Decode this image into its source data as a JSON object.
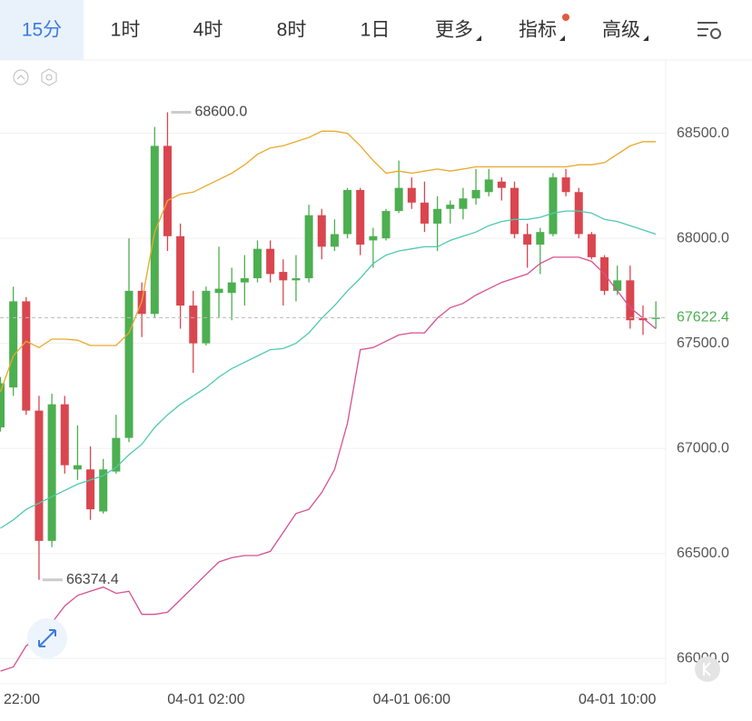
{
  "toolbar": {
    "tabs": [
      "15分",
      "1时",
      "4时",
      "8时",
      "1日",
      "更多",
      "指标",
      "高级"
    ],
    "active": 0
  },
  "chart_data": {
    "type": "candlestick",
    "categories": [
      "22:00",
      null,
      null,
      null,
      null,
      null,
      null,
      null,
      null,
      null,
      null,
      null,
      null,
      null,
      null,
      null,
      "04-01 02:00",
      null,
      null,
      null,
      null,
      null,
      null,
      null,
      null,
      null,
      null,
      null,
      null,
      null,
      null,
      null,
      "04-01 06:00",
      null,
      null,
      null,
      null,
      null,
      null,
      null,
      null,
      null,
      null,
      null,
      null,
      null,
      null,
      null,
      "04-01 10:00",
      null,
      null,
      null
    ],
    "open": [
      67100,
      67290,
      67700,
      67180,
      66560,
      67210,
      66900,
      66900,
      66700,
      66890,
      67050,
      67750,
      67640,
      68440,
      68010,
      67680,
      67500,
      67740,
      67740,
      67790,
      67810,
      67950,
      67840,
      67800,
      67810,
      68110,
      67960,
      68020,
      68230,
      67990,
      68000,
      68130,
      68240,
      68170,
      68070,
      68140,
      68140,
      68190,
      68220,
      68270,
      68240,
      68020,
      67970,
      68020,
      68290,
      68220,
      68020,
      67910,
      67750,
      67800,
      67620,
      67620
    ],
    "high": [
      67340,
      67770,
      67720,
      67250,
      67260,
      67250,
      67110,
      67010,
      66950,
      67160,
      68000,
      67790,
      68530,
      68600,
      68070,
      67750,
      67770,
      67960,
      67860,
      67920,
      67990,
      67990,
      67900,
      67920,
      68160,
      68140,
      68090,
      68240,
      68240,
      68050,
      68140,
      68370,
      68290,
      68270,
      68200,
      68180,
      68240,
      68330,
      68330,
      68290,
      68270,
      68070,
      68050,
      68310,
      68330,
      68240,
      68030,
      67920,
      67870,
      67870,
      67680,
      67700
    ],
    "low": [
      67080,
      67250,
      67160,
      66374.4,
      66530,
      66880,
      66850,
      66660,
      66690,
      66880,
      67030,
      67530,
      67620,
      67940,
      67570,
      67360,
      67490,
      67620,
      67610,
      67680,
      67790,
      67790,
      67680,
      67700,
      67790,
      67900,
      67940,
      68000,
      67920,
      67860,
      67990,
      68120,
      68140,
      68030,
      67940,
      68070,
      68090,
      68160,
      68200,
      68180,
      68000,
      67860,
      67830,
      68010,
      68200,
      68000,
      67900,
      67730,
      67730,
      67570,
      67540,
      67570
    ],
    "close": [
      67310,
      67700,
      67180,
      66560,
      67210,
      66920,
      66920,
      66710,
      66900,
      67050,
      67750,
      67640,
      68440,
      68010,
      67680,
      67500,
      67750,
      67760,
      67790,
      67810,
      67950,
      67830,
      67800,
      67810,
      68110,
      67960,
      68020,
      68230,
      67970,
      68010,
      68130,
      68240,
      68170,
      68070,
      68140,
      68160,
      68190,
      68230,
      68280,
      68240,
      68020,
      67970,
      68030,
      68290,
      68220,
      68020,
      67910,
      67750,
      67800,
      67610,
      67610,
      67622.4
    ],
    "up_color": "#4caf50",
    "down_color": "#d9464f",
    "series": [
      {
        "color": "#e8a92a",
        "values": [
          67270,
          67440,
          67510,
          67480,
          67520,
          67520,
          67515,
          67490,
          67490,
          67490,
          67550,
          67700,
          68030,
          68180,
          68210,
          68220,
          68250,
          68280,
          68310,
          68350,
          68400,
          68430,
          68440,
          68460,
          68480,
          68510,
          68510,
          68500,
          68440,
          68370,
          68310,
          68320,
          68310,
          68320,
          68330,
          68320,
          68330,
          68340,
          68340,
          68340,
          68340,
          68340,
          68340,
          68340,
          68340,
          68350,
          68350,
          68360,
          68400,
          68440,
          68460,
          68460
        ]
      },
      {
        "color": "#4ec9b0",
        "values": [
          66620,
          66660,
          66710,
          66740,
          66770,
          66800,
          66830,
          66850,
          66870,
          66910,
          66970,
          67020,
          67100,
          67160,
          67210,
          67250,
          67290,
          67340,
          67380,
          67410,
          67440,
          67470,
          67475,
          67500,
          67550,
          67620,
          67680,
          67750,
          67810,
          67880,
          67920,
          67940,
          67950,
          67960,
          67960,
          67990,
          68010,
          68030,
          68060,
          68080,
          68090,
          68090,
          68100,
          68120,
          68130,
          68130,
          68120,
          68090,
          68080,
          68060,
          68040,
          68020
        ]
      },
      {
        "color": "#d6508f",
        "values": [
          65940,
          65960,
          66060,
          66100,
          66170,
          66250,
          66300,
          66320,
          66340,
          66310,
          66320,
          66210,
          66210,
          66220,
          66280,
          66340,
          66400,
          66460,
          66480,
          66490,
          66490,
          66510,
          66600,
          66690,
          66710,
          66790,
          66900,
          67120,
          67470,
          67480,
          67510,
          67540,
          67550,
          67550,
          67620,
          67670,
          67690,
          67730,
          67760,
          67790,
          67810,
          67830,
          67880,
          67910,
          67910,
          67910,
          67890,
          67830,
          67750,
          67670,
          67620,
          67570
        ]
      }
    ],
    "annotations": [
      {
        "value": 68600,
        "label": "68600.0"
      },
      {
        "value": 66374.4,
        "label": "66374.4"
      }
    ],
    "ylim": [
      65880,
      68840
    ],
    "yticks": [
      {
        "value": 66000,
        "label": "66000.0"
      },
      {
        "value": 66500,
        "label": "66500.0"
      },
      {
        "value": 67000,
        "label": "67000.0"
      },
      {
        "value": 67500,
        "label": "67500.0"
      },
      {
        "value": 68000,
        "label": "68000.0"
      },
      {
        "value": 68500,
        "label": "68500.0"
      }
    ],
    "grid": true
  }
}
